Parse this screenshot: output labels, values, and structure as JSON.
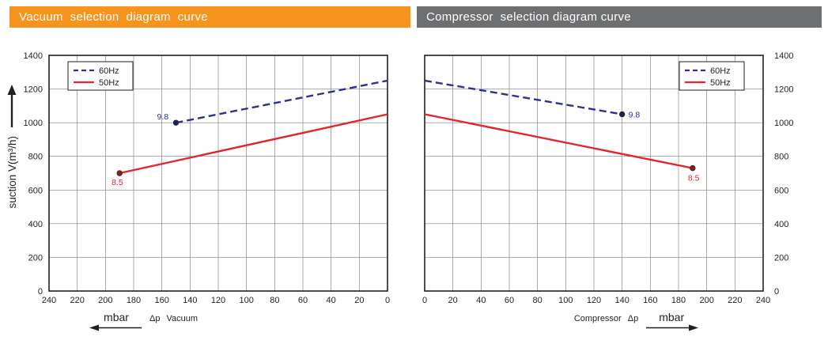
{
  "headers": [
    {
      "text": "Vacuum  selection  diagram  curve",
      "bg": "#f7941e",
      "fg": "#ffffff"
    },
    {
      "text": "Compressor  selection diagram curve",
      "bg": "#6e6f71",
      "fg": "#ffffff"
    }
  ],
  "y_axis_label": "suction V(m³/h)",
  "chart_data": [
    {
      "type": "line",
      "title": "Vacuum selection diagram curve",
      "x_label": {
        "unit": "mbar",
        "dp": "Δp",
        "name": "Vacuum",
        "arrow": "left"
      },
      "x_domain": [
        0,
        240
      ],
      "x_reversed": true,
      "x_ticks": [
        240,
        220,
        200,
        180,
        160,
        140,
        120,
        100,
        80,
        60,
        40,
        20,
        0
      ],
      "y_domain": [
        0,
        1400
      ],
      "y_ticks": [
        0,
        200,
        400,
        600,
        800,
        1000,
        1200,
        1400
      ],
      "y_labels_side": "left",
      "grid": true,
      "legend": {
        "position": "top-left",
        "entries": [
          {
            "label": "60Hz",
            "style": "dashed",
            "color": "#2e3192"
          },
          {
            "label": "50Hz",
            "style": "solid",
            "color": "#e3242b"
          }
        ]
      },
      "series": [
        {
          "name": "60Hz",
          "color": "#2e3192",
          "dashed": true,
          "points": [
            [
              150,
              1000
            ],
            [
              0,
              1250
            ]
          ],
          "marker": {
            "x": 150,
            "y": 1000,
            "label": "9.8",
            "fill": "#1c1e5e",
            "dx": -24,
            "dy": -4
          }
        },
        {
          "name": "50Hz",
          "color": "#e3242b",
          "dashed": false,
          "points": [
            [
              190,
              700
            ],
            [
              0,
              1050
            ]
          ],
          "marker": {
            "x": 190,
            "y": 700,
            "label": "8.5",
            "fill": "#8f1b20",
            "dx": -10,
            "dy": 15
          }
        }
      ]
    },
    {
      "type": "line",
      "title": "Compressor selection diagram curve",
      "x_label": {
        "name": "Compressor",
        "dp": "Δp",
        "unit": "mbar",
        "arrow": "right"
      },
      "x_domain": [
        0,
        240
      ],
      "x_reversed": false,
      "x_ticks": [
        0,
        20,
        40,
        60,
        80,
        100,
        120,
        140,
        160,
        180,
        200,
        220,
        240
      ],
      "y_domain": [
        0,
        1400
      ],
      "y_ticks": [
        0,
        200,
        400,
        600,
        800,
        1000,
        1200,
        1400
      ],
      "y_labels_side": "right",
      "grid": true,
      "legend": {
        "position": "top-right",
        "entries": [
          {
            "label": "60Hz",
            "style": "dashed",
            "color": "#2e3192"
          },
          {
            "label": "50Hz",
            "style": "solid",
            "color": "#e3242b"
          }
        ]
      },
      "series": [
        {
          "name": "60Hz",
          "color": "#2e3192",
          "dashed": true,
          "points": [
            [
              0,
              1250
            ],
            [
              140,
              1050
            ]
          ],
          "marker": {
            "x": 140,
            "y": 1050,
            "label": "9.8",
            "fill": "#1c1e5e",
            "dx": 8,
            "dy": 4
          }
        },
        {
          "name": "50Hz",
          "color": "#e3242b",
          "dashed": false,
          "points": [
            [
              0,
              1050
            ],
            [
              190,
              730
            ]
          ],
          "marker": {
            "x": 190,
            "y": 730,
            "label": "8.5",
            "fill": "#8f1b20",
            "dx": -6,
            "dy": 16
          }
        }
      ]
    }
  ]
}
